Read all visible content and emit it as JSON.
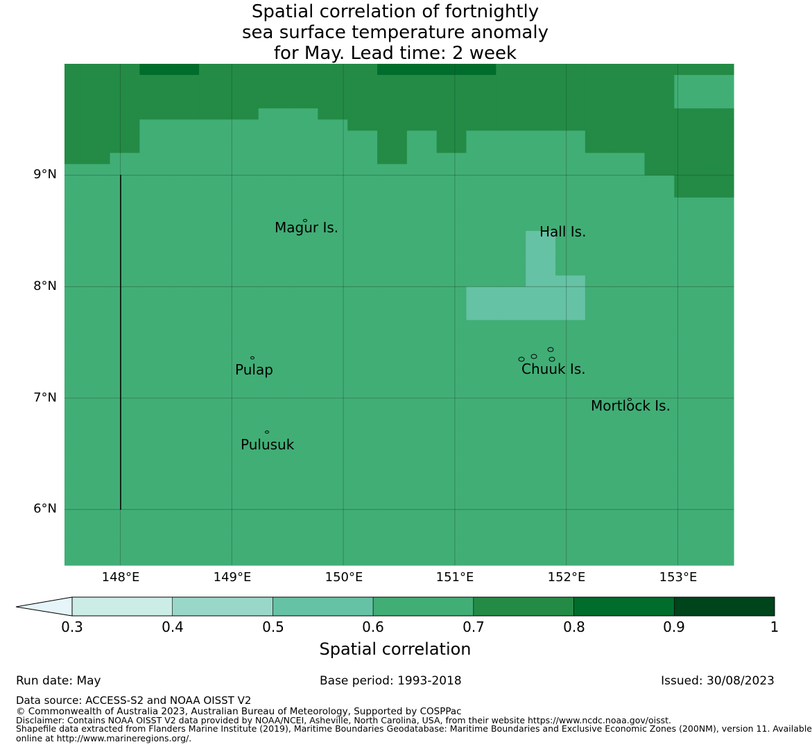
{
  "title": {
    "line1": "Spatial correlation of fortnightly",
    "line2": "sea surface temperature anomaly",
    "line3": "for May. Lead time: 2 week"
  },
  "map": {
    "lon_range": [
      147.5,
      153.5
    ],
    "lat_range": [
      5.5,
      10.0
    ],
    "lat_ticks": [
      "9°N",
      "8°N",
      "7°N",
      "6°N"
    ],
    "lon_ticks": [
      "148°E",
      "149°E",
      "150°E",
      "151°E",
      "152°E",
      "153°E"
    ],
    "grid": true,
    "places": [
      {
        "name": "Magur Is."
      },
      {
        "name": "Hall Is."
      },
      {
        "name": "Pulap"
      },
      {
        "name": "Chuuk Is."
      },
      {
        "name": "Mortlock Is."
      },
      {
        "name": "Pulusuk"
      }
    ],
    "levels": {
      "4": "#99d8c9",
      "5": "#66c2a4",
      "6": "#41ae76",
      "7": "#238b45",
      "8": "#006d2c"
    },
    "cell_rows": [
      "77788777777888877777777",
      "77777777777777777777766",
      "77777777777777777777766",
      "77777777777777777777766",
      "77777776677777777777777",
      "77766666667777777777777",
      "77766666666767666677777",
      "77766666666767666677777",
      "77666666666766666666777",
      "66666666666666666666777",
      "66666666666666666666677",
      "66666666666666666666677",
      "66666666666666666666666",
      "66666666666666666666666",
      "66666666666666666666666",
      "66666666666666665666666",
      "66666666666666665666666",
      "66666666666666665666666",
      "66666666666666665666666",
      "66666666666666665566666",
      "66666666666666555566666",
      "66666666666666555566666",
      "66666666666666555566666",
      "66666666666666666666666",
      "66666666666666666666666",
      "66666666666666666666666",
      "66666666666666666666666",
      "66666666666666666666666",
      "66666666666666666666666",
      "66666666666666666666666",
      "66666666666666666666666",
      "66666666666666666666666",
      "66666666666666666666666",
      "66666666666666666666666",
      "66666666666666666666666",
      "66666666666666666666666",
      "66666666666666666666666",
      "66666666666666666666666",
      "66666666666666666666666",
      "66666666666666666666666",
      "66666666666666666666666",
      "66666666666666666666666",
      "66666666666666666666666",
      "66666666666666666666666",
      "66666666666666666666666"
    ]
  },
  "colorbar": {
    "label": "Spatial correlation",
    "ticks": [
      "0.3",
      "0.4",
      "0.5",
      "0.6",
      "0.7",
      "0.8",
      "0.9",
      "1"
    ],
    "under_color": "#e5f5f9",
    "colors": [
      "#ccece6",
      "#99d8c9",
      "#66c2a4",
      "#41ae76",
      "#238b45",
      "#006d2c",
      "#00441b"
    ]
  },
  "footer": {
    "run_date": "Run date: May",
    "base_period": "Base period: 1993-2018",
    "issued": "Issued: 30/08/2023",
    "data_source": "Data source: ACCESS-S2 and NOAA OISST V2",
    "copyright": "© Commonwealth of Australia 2023, Australian Bureau of Meteorology, Supported by COSPPac",
    "disclaimer": "Disclaimer: Contains NOAA OISST V2 data provided by NOAA/NCEI, Asheville, North Carolina, USA, from their website https://www.ncdc.noaa.gov/oisst.",
    "shapefile1": "Shapefile data extracted from Flanders Marine Institute (2019), Maritime Boundaries Geodatabase: Maritime Boundaries and Exclusive Economic Zones (200NM), version 11. Available",
    "shapefile2": "online at http://www.marineregions.org/."
  }
}
